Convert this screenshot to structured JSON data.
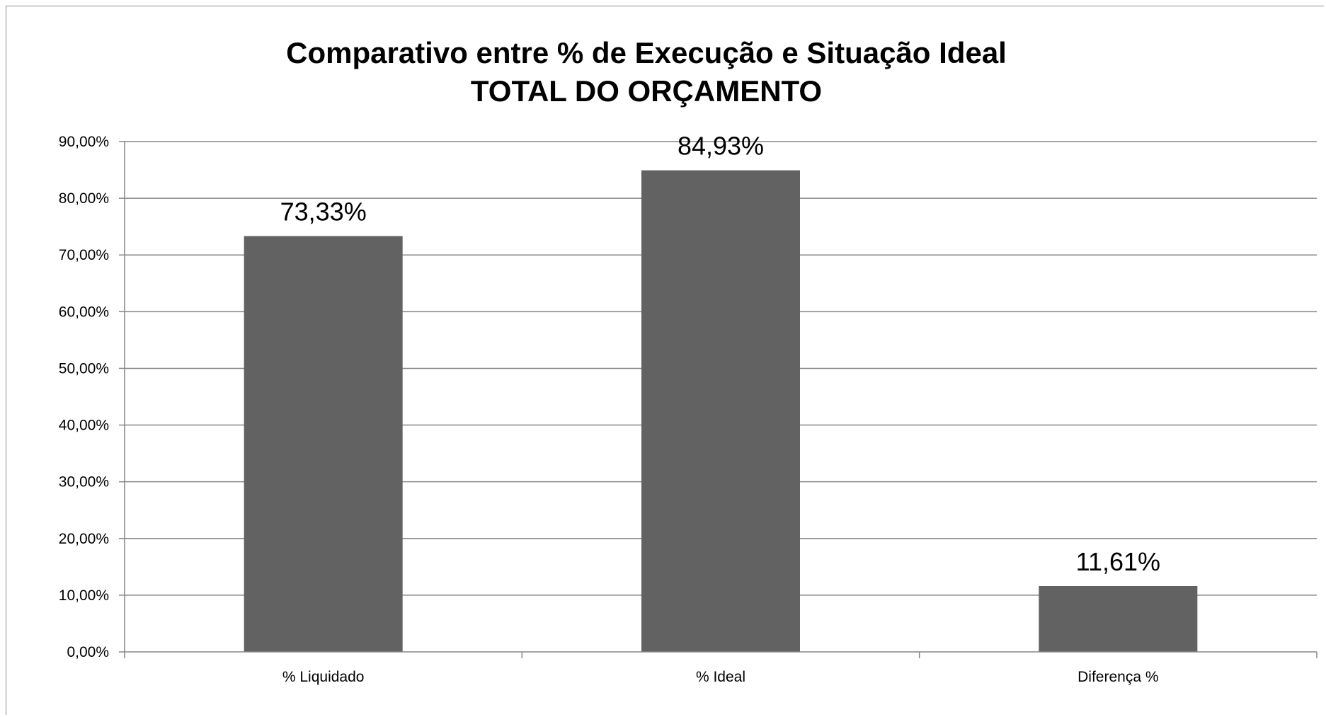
{
  "chart_data": {
    "type": "bar",
    "title": "Comparativo entre % de Execução e Situação Ideal",
    "subtitle": "TOTAL DO ORÇAMENTO",
    "xlabel": "",
    "ylabel": "",
    "categories": [
      "% Liquidado",
      "% Ideal",
      "Diferença %"
    ],
    "values": [
      73.33,
      84.93,
      11.61
    ],
    "data_labels": [
      "73,33%",
      "84,93%",
      "11,61%"
    ],
    "ylim": [
      0,
      90
    ],
    "yticks": [
      0,
      10,
      20,
      30,
      40,
      50,
      60,
      70,
      80,
      90
    ],
    "ytick_labels": [
      "0,00%",
      "10,00%",
      "20,00%",
      "30,00%",
      "40,00%",
      "50,00%",
      "60,00%",
      "70,00%",
      "80,00%",
      "90,00%"
    ],
    "grid": true,
    "legend": "none",
    "bar_color": "#626262",
    "grid_color": "#868686"
  }
}
